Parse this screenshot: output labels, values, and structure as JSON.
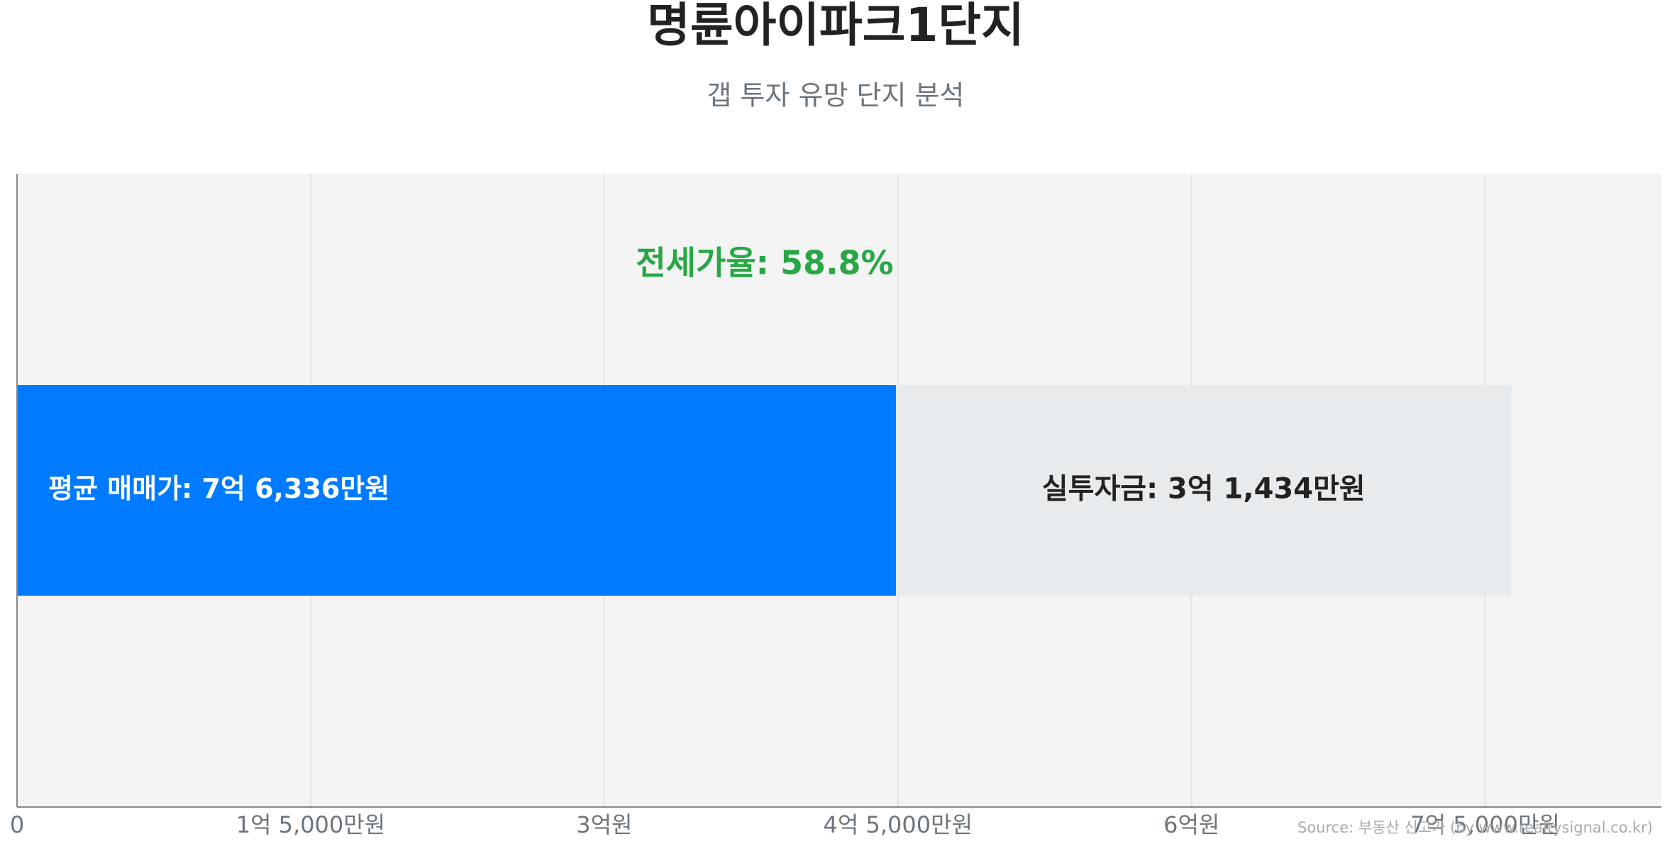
{
  "chart_data": {
    "type": "stacked-hbar",
    "title": "명륜아이파크1단지",
    "subtitle": "갭 투자 유망 단지 분석",
    "annotation": "전세가율: 58.8%",
    "sale_price_label": "평균 매매가: 7억 6,336만원",
    "source": "Source: 부동산 신고가 (by www.realtysignal.co.kr)",
    "series": [
      {
        "color": "#007bff",
        "values": [
          449020000
        ]
      },
      {
        "color": "#e8ebee",
        "values": [
          314340000
        ],
        "value_labels": [
          "실투자금: 3억 1,434만원"
        ]
      }
    ],
    "xlim": [
      0,
      840000000
    ],
    "xticks": [
      0,
      {
        "value": 150000000,
        "label": "1억 5,000만원"
      },
      {
        "value": 300000000,
        "label": "3억원"
      },
      {
        "value": 450000000,
        "label": "4억 5,000만원"
      },
      {
        "value": 600000000,
        "label": "6억원"
      },
      {
        "value": 750000000,
        "label": "7억 5,000만원"
      }
    ],
    "grid": true
  }
}
